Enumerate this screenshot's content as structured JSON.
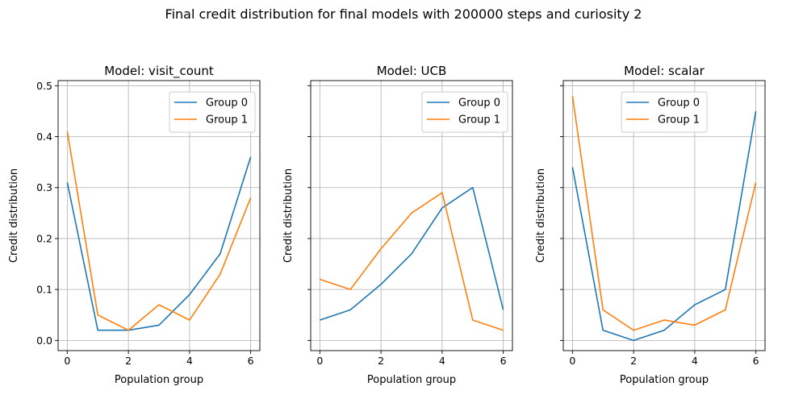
{
  "figure": {
    "suptitle": "Final credit distribution for final models with 200000 steps and curiosity 2"
  },
  "colors": {
    "group0": "#1f77b4",
    "group1": "#ff7f0e",
    "grid": "#b0b0b0",
    "axis": "#000000"
  },
  "chart_data": [
    {
      "type": "line",
      "title": "Model: visit_count",
      "xlabel": "Population group",
      "ylabel": "Credit distribution",
      "x": [
        0,
        1,
        2,
        3,
        4,
        5,
        6
      ],
      "xticks": [
        0,
        2,
        4,
        6
      ],
      "yticks": [
        "0.0",
        "0.1",
        "0.2",
        "0.3",
        "0.4",
        "0.5"
      ],
      "ylim": [
        -0.02,
        0.51
      ],
      "ytick_labels_shown": true,
      "grid": true,
      "legend": "upper right",
      "series": [
        {
          "name": "Group 0",
          "values": [
            0.31,
            0.02,
            0.02,
            0.03,
            0.09,
            0.17,
            0.36
          ]
        },
        {
          "name": "Group 1",
          "values": [
            0.41,
            0.05,
            0.02,
            0.07,
            0.04,
            0.13,
            0.28
          ]
        }
      ]
    },
    {
      "type": "line",
      "title": "Model: UCB",
      "xlabel": "Population group",
      "ylabel": "Credit distribution",
      "x": [
        0,
        1,
        2,
        3,
        4,
        5,
        6
      ],
      "xticks": [
        0,
        2,
        4,
        6
      ],
      "yticks": [
        "0.0",
        "0.1",
        "0.2",
        "0.3",
        "0.4",
        "0.5"
      ],
      "ylim": [
        -0.02,
        0.51
      ],
      "ytick_labels_shown": false,
      "grid": true,
      "legend": "upper right",
      "series": [
        {
          "name": "Group 0",
          "values": [
            0.04,
            0.06,
            0.11,
            0.17,
            0.26,
            0.3,
            0.06
          ]
        },
        {
          "name": "Group 1",
          "values": [
            0.12,
            0.1,
            0.18,
            0.25,
            0.29,
            0.04,
            0.02
          ]
        }
      ]
    },
    {
      "type": "line",
      "title": "Model: scalar",
      "xlabel": "Population group",
      "ylabel": "Credit distribution",
      "x": [
        0,
        1,
        2,
        3,
        4,
        5,
        6
      ],
      "xticks": [
        0,
        2,
        4,
        6
      ],
      "yticks": [
        "0.0",
        "0.1",
        "0.2",
        "0.3",
        "0.4",
        "0.5"
      ],
      "ylim": [
        -0.02,
        0.51
      ],
      "ytick_labels_shown": false,
      "grid": true,
      "legend": "upper center",
      "series": [
        {
          "name": "Group 0",
          "values": [
            0.34,
            0.02,
            0.0,
            0.02,
            0.07,
            0.1,
            0.45
          ]
        },
        {
          "name": "Group 1",
          "values": [
            0.48,
            0.06,
            0.02,
            0.04,
            0.03,
            0.06,
            0.31
          ]
        }
      ]
    }
  ]
}
